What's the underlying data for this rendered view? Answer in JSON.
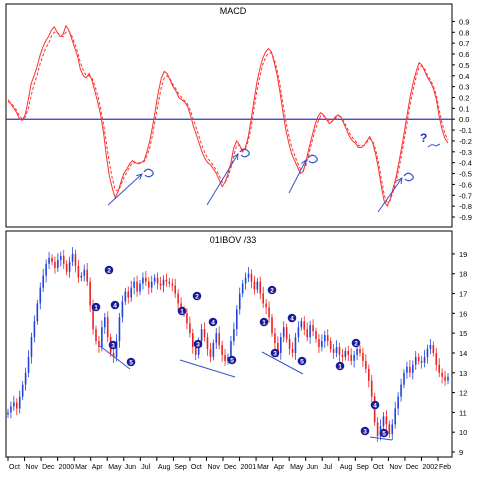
{
  "chart_data": [
    {
      "type": "line",
      "title": "MACD",
      "ylim": [
        -0.9,
        0.95
      ],
      "y_ticks": [
        "0.9",
        "0.8",
        "0.7",
        "0.6",
        "0.5",
        "0.4",
        "0.3",
        "0.2",
        "0.1",
        "0.0",
        "-0.1",
        "-0.2",
        "-0.3",
        "-0.4",
        "-0.5",
        "-0.6",
        "-0.7",
        "-0.8",
        "-0.9"
      ],
      "zero_line_value": 0.0,
      "annotation": "?",
      "colors": {
        "macd": "#ff3030",
        "signal": "#ff3030",
        "zero": "#3333cc",
        "arrows": "#3355cc"
      },
      "series": [
        {
          "style": "solid",
          "values": [
            0.18,
            0.14,
            0.1,
            0.06,
            0.0,
            -0.01,
            0.05,
            0.18,
            0.33,
            0.4,
            0.48,
            0.58,
            0.66,
            0.72,
            0.76,
            0.82,
            0.85,
            0.8,
            0.76,
            0.78,
            0.86,
            0.82,
            0.74,
            0.66,
            0.58,
            0.46,
            0.4,
            0.38,
            0.42,
            0.36,
            0.26,
            0.16,
            0.04,
            -0.12,
            -0.34,
            -0.52,
            -0.63,
            -0.72,
            -0.67,
            -0.58,
            -0.5,
            -0.46,
            -0.41,
            -0.38,
            -0.4,
            -0.41,
            -0.4,
            -0.38,
            -0.3,
            -0.2,
            -0.06,
            0.1,
            0.26,
            0.38,
            0.44,
            0.42,
            0.36,
            0.3,
            0.26,
            0.2,
            0.18,
            0.16,
            0.12,
            0.04,
            -0.06,
            -0.14,
            -0.22,
            -0.3,
            -0.36,
            -0.4,
            -0.42,
            -0.46,
            -0.5,
            -0.56,
            -0.62,
            -0.58,
            -0.5,
            -0.4,
            -0.26,
            -0.2,
            -0.24,
            -0.3,
            -0.26,
            -0.16,
            0.0,
            0.18,
            0.34,
            0.46,
            0.56,
            0.62,
            0.65,
            0.62,
            0.52,
            0.4,
            0.24,
            0.06,
            -0.1,
            -0.22,
            -0.32,
            -0.38,
            -0.44,
            -0.5,
            -0.48,
            -0.38,
            -0.26,
            -0.16,
            -0.06,
            0.02,
            0.06,
            0.04,
            0.0,
            -0.04,
            -0.02,
            0.02,
            0.04,
            0.02,
            -0.04,
            -0.1,
            -0.16,
            -0.2,
            -0.22,
            -0.26,
            -0.26,
            -0.24,
            -0.2,
            -0.16,
            -0.22,
            -0.32,
            -0.46,
            -0.62,
            -0.76,
            -0.8,
            -0.74,
            -0.64,
            -0.54,
            -0.4,
            -0.26,
            -0.1,
            0.06,
            0.22,
            0.34,
            0.44,
            0.52,
            0.5,
            0.44,
            0.38,
            0.34,
            0.28,
            0.18,
            0.02,
            -0.1,
            -0.18,
            -0.22
          ]
        },
        {
          "style": "dashed",
          "values": [
            0.16,
            0.15,
            0.12,
            0.08,
            0.03,
            0.0,
            0.02,
            0.1,
            0.22,
            0.32,
            0.4,
            0.5,
            0.58,
            0.65,
            0.7,
            0.76,
            0.8,
            0.8,
            0.77,
            0.76,
            0.8,
            0.81,
            0.77,
            0.7,
            0.62,
            0.52,
            0.45,
            0.4,
            0.4,
            0.38,
            0.31,
            0.22,
            0.1,
            -0.04,
            -0.22,
            -0.4,
            -0.54,
            -0.65,
            -0.66,
            -0.61,
            -0.54,
            -0.49,
            -0.44,
            -0.4,
            -0.4,
            -0.4,
            -0.4,
            -0.39,
            -0.34,
            -0.26,
            -0.14,
            0.02,
            0.16,
            0.3,
            0.38,
            0.4,
            0.37,
            0.32,
            0.28,
            0.23,
            0.2,
            0.17,
            0.14,
            0.08,
            0.0,
            -0.08,
            -0.16,
            -0.24,
            -0.31,
            -0.36,
            -0.39,
            -0.43,
            -0.47,
            -0.52,
            -0.58,
            -0.58,
            -0.53,
            -0.45,
            -0.33,
            -0.24,
            -0.24,
            -0.28,
            -0.27,
            -0.2,
            -0.07,
            0.1,
            0.26,
            0.39,
            0.5,
            0.57,
            0.61,
            0.61,
            0.55,
            0.45,
            0.31,
            0.14,
            -0.02,
            -0.15,
            -0.26,
            -0.33,
            -0.4,
            -0.46,
            -0.47,
            -0.41,
            -0.31,
            -0.21,
            -0.11,
            -0.03,
            0.03,
            0.03,
            0.01,
            -0.02,
            -0.02,
            0.01,
            0.03,
            0.02,
            -0.02,
            -0.07,
            -0.13,
            -0.17,
            -0.2,
            -0.24,
            -0.25,
            -0.24,
            -0.21,
            -0.18,
            -0.2,
            -0.28,
            -0.4,
            -0.55,
            -0.7,
            -0.77,
            -0.75,
            -0.67,
            -0.58,
            -0.46,
            -0.32,
            -0.17,
            -0.01,
            0.15,
            0.28,
            0.39,
            0.48,
            0.49,
            0.46,
            0.4,
            0.36,
            0.3,
            0.22,
            0.08,
            -0.04,
            -0.14,
            -0.19
          ]
        }
      ]
    },
    {
      "type": "candlestick",
      "title": "01IBOV /33",
      "ylim": [
        9.0,
        19.5
      ],
      "y_ticks": [
        "19",
        "18",
        "17",
        "16",
        "15",
        "14",
        "13",
        "12",
        "11",
        "10",
        "9"
      ],
      "colors": {
        "up": "#2244dd",
        "down": "#ee2222",
        "markers": "#1a1a99"
      },
      "x_labels": [
        "Oct",
        "Nov",
        "Dec",
        "2000",
        "Mar",
        "Apr",
        "May",
        "Jun",
        "Jul",
        "Aug",
        "Sep",
        "Oct",
        "Nov",
        "Dec",
        "2001",
        "Mar",
        "Apr",
        "May",
        "Jun",
        "Jul",
        "Aug",
        "Sep",
        "Oct",
        "Nov",
        "Dec",
        "2002",
        "Feb"
      ],
      "close": [
        11.0,
        11.3,
        11.5,
        11.2,
        11.8,
        12.4,
        13.0,
        13.8,
        14.8,
        15.6,
        16.5,
        17.3,
        17.9,
        18.5,
        18.8,
        18.6,
        18.3,
        18.7,
        18.9,
        18.5,
        18.1,
        18.6,
        19.0,
        18.4,
        17.8,
        17.9,
        18.2,
        17.6,
        16.4,
        15.2,
        14.6,
        14.3,
        15.3,
        15.8,
        14.8,
        14.0,
        13.8,
        14.6,
        15.8,
        16.6,
        17.1,
        16.8,
        17.3,
        17.6,
        17.1,
        17.5,
        17.8,
        17.6,
        17.3,
        17.6,
        17.8,
        17.5,
        17.4,
        17.7,
        17.6,
        17.5,
        17.4,
        17.0,
        16.5,
        16.2,
        16.0,
        15.5,
        15.0,
        14.3,
        13.9,
        14.6,
        15.2,
        14.8,
        14.2,
        13.8,
        14.5,
        15.0,
        14.4,
        13.9,
        13.6,
        13.8,
        14.6,
        15.2,
        16.2,
        17.0,
        17.5,
        17.8,
        18.0,
        17.6,
        17.2,
        17.6,
        17.0,
        16.5,
        16.3,
        15.8,
        15.0,
        14.5,
        14.0,
        14.8,
        15.3,
        14.7,
        14.2,
        14.0,
        14.8,
        15.3,
        15.6,
        15.2,
        14.8,
        15.4,
        15.1,
        14.7,
        14.3,
        14.6,
        14.9,
        14.6,
        14.2,
        14.0,
        14.3,
        13.9,
        13.8,
        14.1,
        13.9,
        13.6,
        13.9,
        14.2,
        14.0,
        13.6,
        13.2,
        12.6,
        11.8,
        10.5,
        9.8,
        10.3,
        10.8,
        10.4,
        9.9,
        10.4,
        11.2,
        11.8,
        12.4,
        13.0,
        13.3,
        13.0,
        13.4,
        13.8,
        13.6,
        13.5,
        13.8,
        14.2,
        14.4,
        14.0,
        13.4,
        13.0,
        12.8,
        12.6,
        12.8
      ]
    }
  ]
}
